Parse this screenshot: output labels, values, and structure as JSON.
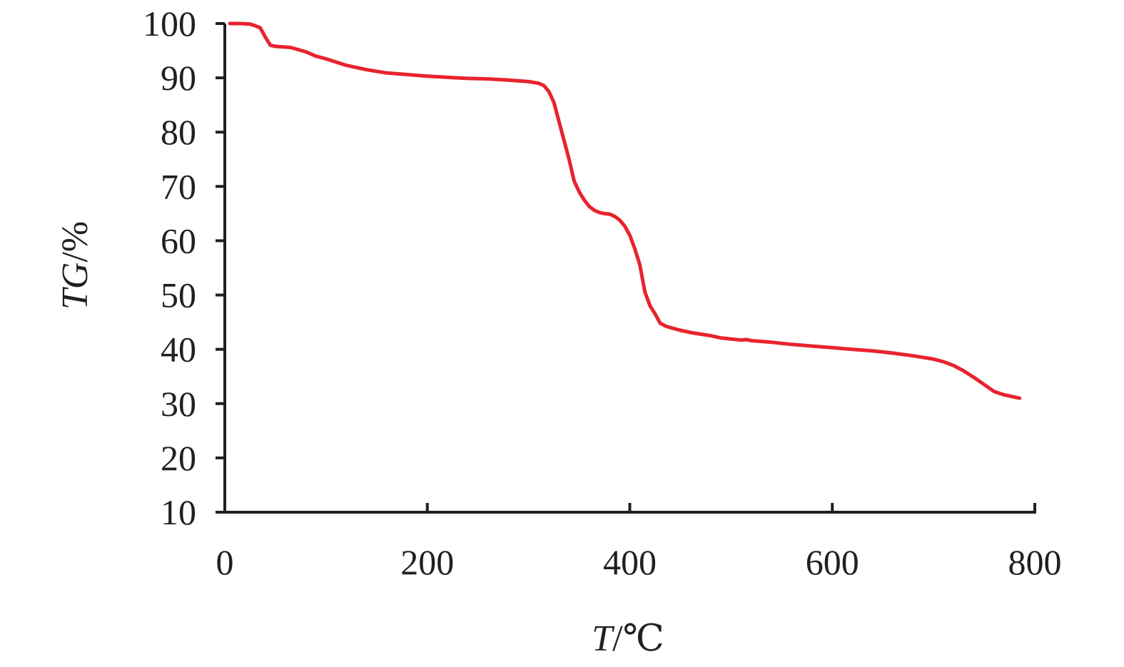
{
  "chart_data": {
    "type": "line",
    "xlabel_var": "T",
    "xlabel_unit": "/℃",
    "ylabel_var": "TG",
    "ylabel_unit": "/%",
    "xlim": [
      0,
      800
    ],
    "ylim": [
      10,
      100
    ],
    "xticks": [
      0,
      200,
      400,
      600,
      800
    ],
    "yticks": [
      10,
      20,
      30,
      40,
      50,
      60,
      70,
      80,
      90,
      100
    ],
    "grid": false,
    "colors": {
      "series": "#e8232d",
      "axis": "#231f20"
    },
    "series": [
      {
        "x": [
          5,
          15,
          25,
          30,
          35,
          40,
          45,
          50,
          65,
          80,
          90,
          100,
          120,
          140,
          160,
          180,
          200,
          220,
          240,
          260,
          280,
          300,
          310,
          315,
          320,
          325,
          330,
          335,
          340,
          345,
          350,
          355,
          360,
          365,
          370,
          375,
          380,
          385,
          390,
          395,
          400,
          405,
          410,
          412,
          415,
          420,
          425,
          430,
          435,
          440,
          450,
          460,
          470,
          480,
          490,
          500,
          510,
          515,
          520,
          540,
          560,
          580,
          600,
          620,
          640,
          660,
          680,
          700,
          710,
          720,
          730,
          740,
          750,
          760,
          770,
          785
        ],
        "y": [
          100,
          100,
          99.9,
          99.6,
          99.2,
          97.5,
          96,
          95.8,
          95.6,
          94.8,
          94,
          93.5,
          92.3,
          91.5,
          90.9,
          90.6,
          90.3,
          90.1,
          89.9,
          89.8,
          89.6,
          89.3,
          89,
          88.6,
          87.5,
          85.5,
          82,
          78.5,
          75,
          71,
          69,
          67.5,
          66.3,
          65.6,
          65.2,
          65,
          64.9,
          64.5,
          63.8,
          62.7,
          61,
          58.5,
          55.5,
          53.5,
          50.5,
          48,
          46.5,
          44.8,
          44.3,
          44,
          43.5,
          43.1,
          42.8,
          42.5,
          42.1,
          41.9,
          41.7,
          41.8,
          41.6,
          41.3,
          40.9,
          40.6,
          40.3,
          40,
          39.7,
          39.3,
          38.8,
          38.2,
          37.7,
          37,
          36,
          34.8,
          33.5,
          32.2,
          31.6,
          31
        ]
      }
    ]
  }
}
